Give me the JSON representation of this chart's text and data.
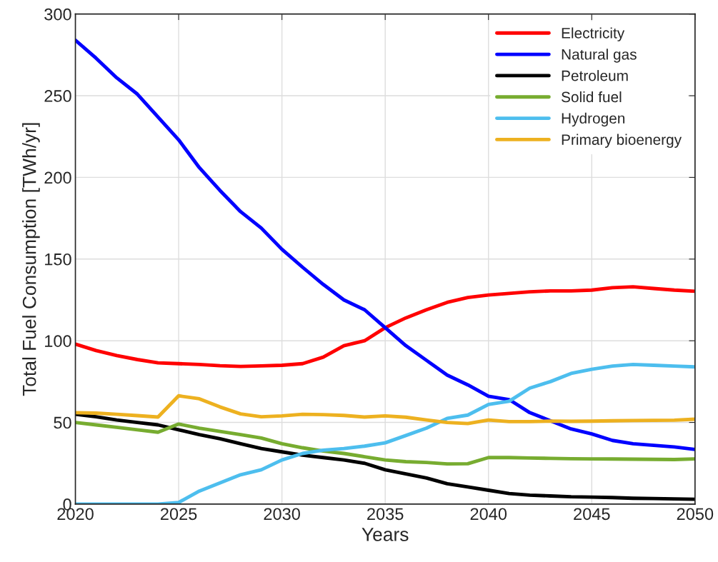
{
  "chart_data": {
    "type": "line",
    "xlabel": "Years",
    "ylabel": "Total Fuel Consumption [TWh/yr]",
    "x": [
      2020,
      2021,
      2022,
      2023,
      2024,
      2025,
      2026,
      2027,
      2028,
      2029,
      2030,
      2031,
      2032,
      2033,
      2034,
      2035,
      2036,
      2037,
      2038,
      2039,
      2040,
      2041,
      2042,
      2043,
      2044,
      2045,
      2046,
      2047,
      2048,
      2049,
      2050
    ],
    "series": [
      {
        "name": "Electricity",
        "color": "#ff0000",
        "values": [
          98,
          94,
          91,
          88.5,
          86.5,
          86,
          85.5,
          84.7,
          84.3,
          84.6,
          85,
          86,
          90,
          97,
          100,
          108,
          114,
          119,
          123.5,
          126.5,
          128,
          129,
          130,
          130.5,
          130.5,
          131,
          132.5,
          133,
          132,
          131,
          130.3
        ]
      },
      {
        "name": "Natural gas",
        "color": "#0000ff",
        "values": [
          284,
          273,
          261,
          251,
          237,
          223,
          206,
          192,
          179,
          169,
          156,
          145,
          134.5,
          125,
          119,
          108,
          97,
          88,
          79,
          73,
          66,
          64,
          56,
          51,
          46,
          43,
          39,
          37,
          36,
          35,
          33.5
        ]
      },
      {
        "name": "Petroleum",
        "color": "#000000",
        "values": [
          55,
          53.5,
          51.5,
          50,
          48.5,
          45.5,
          42.5,
          40,
          37,
          34,
          32,
          30,
          28.5,
          27,
          25,
          21,
          18.5,
          16,
          12.5,
          10.5,
          8.5,
          6.5,
          5.5,
          5,
          4.5,
          4.3,
          4,
          3.6,
          3.4,
          3.2,
          3
        ]
      },
      {
        "name": "Solid fuel",
        "color": "#77ac30",
        "values": [
          50,
          48.5,
          47,
          45.5,
          44,
          49,
          46.5,
          44.5,
          42.5,
          40.5,
          37,
          34.5,
          32.5,
          31,
          29,
          27,
          26,
          25.5,
          24.6,
          24.7,
          28.5,
          28.5,
          28.2,
          28,
          27.8,
          27.7,
          27.6,
          27.5,
          27.4,
          27.3,
          27.7
        ]
      },
      {
        "name": "Hydrogen",
        "color": "#4dbeee",
        "values": [
          0,
          0,
          0,
          0,
          0,
          1,
          8,
          13,
          18,
          21,
          27,
          31,
          33,
          34,
          35.5,
          37.5,
          42,
          46.5,
          52.5,
          54.5,
          61,
          63,
          71,
          75,
          80,
          82.5,
          84.5,
          85.5,
          85,
          84.5,
          84
        ]
      },
      {
        "name": "Primary bioenergy",
        "color": "#edb120",
        "values": [
          56,
          55.7,
          55,
          54.2,
          53.3,
          66.3,
          64.5,
          59.5,
          55.2,
          53.5,
          54,
          55,
          54.8,
          54.3,
          53.3,
          54,
          53.2,
          51.5,
          50,
          49.3,
          51.5,
          50.5,
          50.5,
          50.8,
          50.7,
          50.8,
          51,
          51.2,
          51.3,
          51.4,
          52
        ]
      }
    ],
    "xlim": [
      2020,
      2050
    ],
    "xticks": [
      2020,
      2025,
      2030,
      2035,
      2040,
      2045,
      2050
    ],
    "ylim": [
      0,
      300
    ],
    "yticks": [
      0,
      50,
      100,
      150,
      200,
      250,
      300
    ],
    "grid": true,
    "legend": "top right",
    "marker": "none",
    "line_style": "solid"
  }
}
